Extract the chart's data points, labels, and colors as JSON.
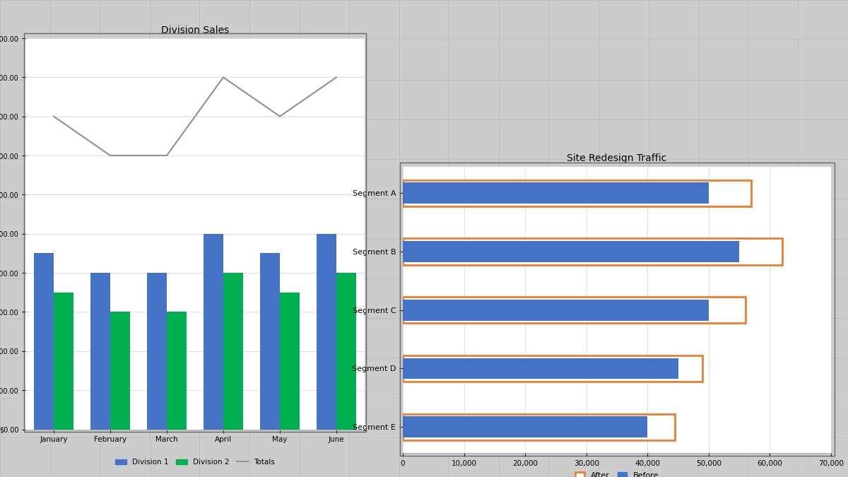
{
  "chart1": {
    "title": "Division Sales",
    "months": [
      "January",
      "February",
      "March",
      "April",
      "May",
      "June"
    ],
    "division1": [
      450,
      400,
      400,
      500,
      450,
      500
    ],
    "division2": [
      350,
      300,
      300,
      400,
      350,
      400
    ],
    "totals": [
      800,
      700,
      700,
      900,
      800,
      900
    ],
    "div1_color": "#4472C4",
    "div2_color": "#00B050",
    "totals_color": "#909090",
    "ylim": [
      0,
      1000
    ],
    "ytick_step": 100,
    "bar_width": 0.35,
    "bg_color": "#FFFFFF",
    "grid_color": "#E0E0E0"
  },
  "chart2": {
    "title": "Site Redesign Traffic",
    "segments": [
      "Segment E",
      "Segment D",
      "Segment C",
      "Segment B",
      "Segment A"
    ],
    "after_values": [
      44500,
      49000,
      56000,
      62000,
      57000
    ],
    "before_values": [
      40000,
      45000,
      50000,
      55000,
      50000
    ],
    "after_color": "#ED7D31",
    "before_color": "#4472C4",
    "xlim": [
      0,
      70000
    ],
    "xtick_step": 10000,
    "bar_height": 0.45,
    "bg_color": "#FFFFFF",
    "grid_color": "#E0E0E0"
  },
  "outer_bg": "#CCCCCC",
  "gridline_color": "#BBBBBB",
  "grid_nx": 17,
  "grid_ny": 12
}
